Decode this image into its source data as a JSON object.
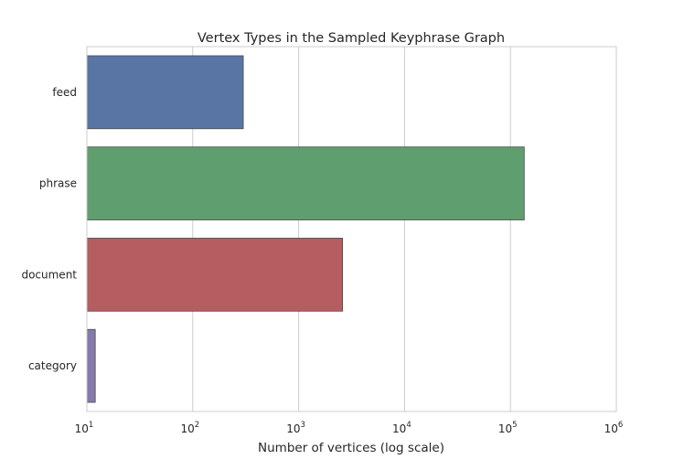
{
  "chart_data": {
    "type": "bar",
    "orientation": "horizontal",
    "title": "Vertex Types in the Sampled Keyphrase Graph",
    "xlabel": "Number of vertices (log scale)",
    "ylabel": "",
    "x_scale": "log",
    "xlim": [
      10,
      1000000
    ],
    "grid": "vertical",
    "categories": [
      "feed",
      "phrase",
      "document",
      "category"
    ],
    "values": [
      300,
      135000,
      2600,
      12
    ],
    "colors": [
      "#5975a4",
      "#5f9e6e",
      "#b55d60",
      "#857aab"
    ],
    "x_ticks": [
      {
        "value": 10,
        "base": "10",
        "exp": "1"
      },
      {
        "value": 100,
        "base": "10",
        "exp": "2"
      },
      {
        "value": 1000,
        "base": "10",
        "exp": "3"
      },
      {
        "value": 10000,
        "base": "10",
        "exp": "4"
      },
      {
        "value": 100000,
        "base": "10",
        "exp": "5"
      },
      {
        "value": 1000000,
        "base": "10",
        "exp": "6"
      }
    ]
  }
}
